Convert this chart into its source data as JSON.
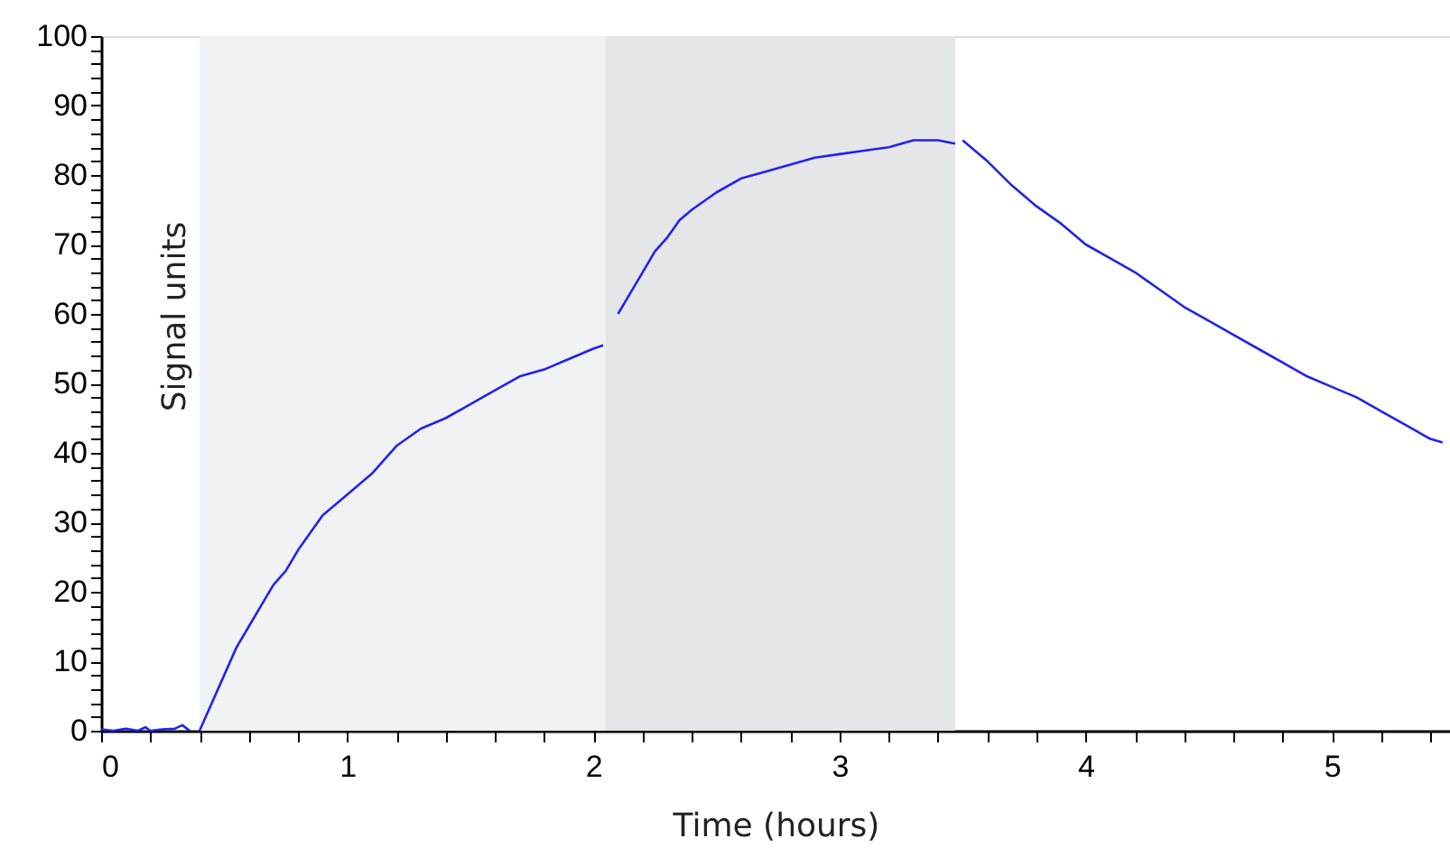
{
  "chart_data": {
    "type": "line",
    "xlabel": "Time (hours)",
    "ylabel": "Signal units",
    "x": [
      0,
      0.05,
      0.1,
      0.15,
      0.18,
      0.2,
      0.25,
      0.3,
      0.33,
      0.36,
      0.38,
      0.4,
      0.45,
      0.5,
      0.55,
      0.6,
      0.65,
      0.7,
      0.75,
      0.8,
      0.85,
      0.9,
      0.95,
      1.0,
      1.1,
      1.2,
      1.3,
      1.4,
      1.5,
      1.6,
      1.7,
      1.8,
      1.9,
      2.0,
      2.04,
      2.05,
      2.1,
      2.15,
      2.2,
      2.25,
      2.3,
      2.35,
      2.4,
      2.5,
      2.6,
      2.7,
      2.8,
      2.9,
      3.0,
      3.1,
      3.2,
      3.3,
      3.4,
      3.47,
      3.48,
      3.5,
      3.6,
      3.7,
      3.8,
      3.9,
      4.0,
      4.1,
      4.2,
      4.3,
      4.4,
      4.5,
      4.6,
      4.7,
      4.8,
      4.9,
      5.0,
      5.1,
      5.2,
      5.3,
      5.4,
      5.45
    ],
    "series": [
      {
        "color": "#2222ee",
        "values": [
          0.2,
          0,
          0.3,
          0,
          0.5,
          0,
          0.2,
          0.3,
          0.8,
          0,
          null,
          0,
          4,
          8,
          12,
          15,
          18,
          21,
          23,
          26,
          28.5,
          31,
          32.5,
          34,
          37,
          41,
          43.5,
          45,
          47,
          49,
          51,
          52,
          53.5,
          55,
          55.5,
          null,
          60,
          63,
          66,
          69,
          71,
          73.5,
          75,
          77.5,
          79.5,
          80.5,
          81.5,
          82.5,
          83,
          83.5,
          84,
          85,
          85,
          84.5,
          null,
          85,
          82,
          78.5,
          75.5,
          73,
          70,
          68,
          66,
          63.5,
          61,
          59,
          57,
          55,
          53,
          51,
          49.5,
          48,
          46,
          44,
          42,
          41.5
        ]
      }
    ],
    "xlim": [
      0,
      5.48
    ],
    "ylim": [
      0,
      100
    ],
    "xticks": [
      0,
      {
        "value": 0.2,
        "label": null
      },
      {
        "value": 0.4,
        "label": null
      },
      {
        "value": 0.6,
        "label": null
      },
      {
        "value": 0.8,
        "label": null
      },
      1,
      {
        "value": 1.2,
        "label": null
      },
      {
        "value": 1.4,
        "label": null
      },
      {
        "value": 1.6,
        "label": null
      },
      {
        "value": 1.8,
        "label": null
      },
      2,
      {
        "value": 2.2,
        "label": null
      },
      {
        "value": 2.4,
        "label": null
      },
      {
        "value": 2.6,
        "label": null
      },
      {
        "value": 2.8,
        "label": null
      },
      3,
      {
        "value": 3.2,
        "label": null
      },
      {
        "value": 3.4,
        "label": null
      },
      {
        "value": 3.6,
        "label": null
      },
      {
        "value": 3.8,
        "label": null
      },
      4,
      {
        "value": 4.2,
        "label": null
      },
      {
        "value": 4.4,
        "label": null
      },
      {
        "value": 4.6,
        "label": null
      },
      {
        "value": 4.8,
        "label": null
      },
      5,
      {
        "value": 5.2,
        "label": null
      },
      {
        "value": 5.4,
        "label": null
      }
    ],
    "yticks": [
      0,
      {
        "value": 2,
        "label": null
      },
      {
        "value": 4,
        "label": null
      },
      {
        "value": 6,
        "label": null
      },
      {
        "value": 8,
        "label": null
      },
      10,
      {
        "value": 12,
        "label": null
      },
      {
        "value": 14,
        "label": null
      },
      {
        "value": 16,
        "label": null
      },
      {
        "value": 18,
        "label": null
      },
      20,
      {
        "value": 22,
        "label": null
      },
      {
        "value": 24,
        "label": null
      },
      {
        "value": 26,
        "label": null
      },
      {
        "value": 28,
        "label": null
      },
      30,
      {
        "value": 32,
        "label": null
      },
      {
        "value": 34,
        "label": null
      },
      {
        "value": 36,
        "label": null
      },
      {
        "value": 38,
        "label": null
      },
      40,
      {
        "value": 42,
        "label": null
      },
      {
        "value": 44,
        "label": null
      },
      {
        "value": 46,
        "label": null
      },
      {
        "value": 48,
        "label": null
      },
      50,
      {
        "value": 52,
        "label": null
      },
      {
        "value": 54,
        "label": null
      },
      {
        "value": 56,
        "label": null
      },
      {
        "value": 58,
        "label": null
      },
      60,
      {
        "value": 62,
        "label": null
      },
      {
        "value": 64,
        "label": null
      },
      {
        "value": 66,
        "label": null
      },
      {
        "value": 68,
        "label": null
      },
      70,
      {
        "value": 72,
        "label": null
      },
      {
        "value": 74,
        "label": null
      },
      {
        "value": 76,
        "label": null
      },
      {
        "value": 78,
        "label": null
      },
      80,
      {
        "value": 82,
        "label": null
      },
      {
        "value": 84,
        "label": null
      },
      {
        "value": 86,
        "label": null
      },
      {
        "value": 88,
        "label": null
      },
      90,
      {
        "value": 92,
        "label": null
      },
      {
        "value": 94,
        "label": null
      },
      {
        "value": 96,
        "label": null
      },
      {
        "value": 98,
        "label": null
      },
      100
    ],
    "bands": [
      {
        "axis": "x",
        "from": 0.4,
        "to": 2.05,
        "color": "#f1f2f4"
      },
      {
        "axis": "x",
        "from": 2.05,
        "to": 3.47,
        "color": "#e5e6e8"
      }
    ],
    "grid": false,
    "marker": "none",
    "line_style": "solid"
  }
}
